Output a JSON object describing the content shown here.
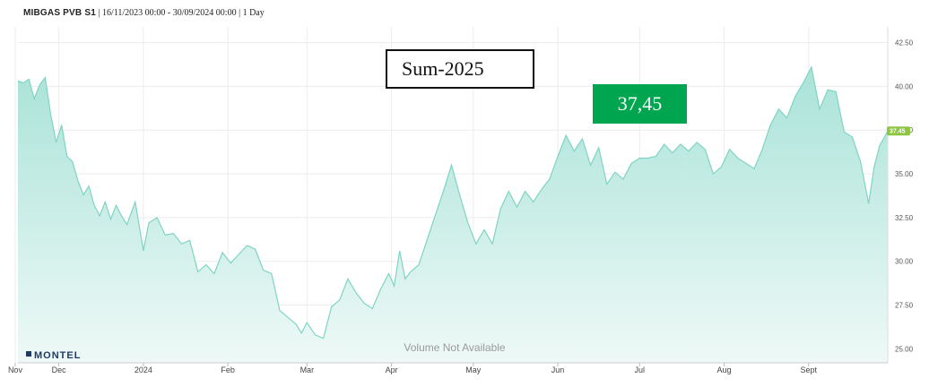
{
  "header": {
    "symbol": "MIBGAS PVB S1",
    "meta": " | 16/11/2023 00:00 - 30/09/2024 00:00 | 1 Day"
  },
  "overlays": {
    "product": "Sum-2025",
    "price": "37,45"
  },
  "watermark": "Volume Not Available",
  "brand": "MONTEL",
  "last_value_label": "37.45",
  "colors": {
    "line": "#7fd4c4",
    "fill_top": "#a9e3d8",
    "fill_bottom": "#eef9f7",
    "price_box": "#00a550",
    "last_label_bg": "#8dc63f",
    "grid": "#ececec"
  },
  "chart_data": {
    "type": "area",
    "title": "MIBGAS PVB S1",
    "xlabel": "",
    "ylabel": "",
    "grid": true,
    "y_axis_side": "right",
    "ylim": [
      24.2,
      43.4
    ],
    "xlim": [
      "2023-11-16",
      "2024-09-30"
    ],
    "y_ticks": [
      "25.00",
      "27.50",
      "30.00",
      "32.50",
      "35.00",
      "37.50",
      "40.00",
      "42.50"
    ],
    "x_ticks": [
      {
        "label": "Nov",
        "date": "2023-11-15"
      },
      {
        "label": "Dec",
        "date": "2023-12-01"
      },
      {
        "label": "2024",
        "date": "2024-01-01"
      },
      {
        "label": "Feb",
        "date": "2024-02-01"
      },
      {
        "label": "Mar",
        "date": "2024-03-01"
      },
      {
        "label": "Apr",
        "date": "2024-04-01"
      },
      {
        "label": "May",
        "date": "2024-05-01"
      },
      {
        "label": "Jun",
        "date": "2024-06-01"
      },
      {
        "label": "Jul",
        "date": "2024-07-01"
      },
      {
        "label": "Aug",
        "date": "2024-08-01"
      },
      {
        "label": "Sept",
        "date": "2024-09-01"
      }
    ],
    "series": [
      {
        "values": [
          [
            "2023-11-16",
            40.3
          ],
          [
            "2023-11-18",
            40.2
          ],
          [
            "2023-11-20",
            40.4
          ],
          [
            "2023-11-22",
            39.3
          ],
          [
            "2023-11-24",
            40.1
          ],
          [
            "2023-11-26",
            40.5
          ],
          [
            "2023-11-28",
            38.4
          ],
          [
            "2023-11-30",
            36.8
          ],
          [
            "2023-12-02",
            37.8
          ],
          [
            "2023-12-04",
            36.0
          ],
          [
            "2023-12-06",
            35.7
          ],
          [
            "2023-12-08",
            34.6
          ],
          [
            "2023-12-10",
            33.8
          ],
          [
            "2023-12-12",
            34.3
          ],
          [
            "2023-12-14",
            33.2
          ],
          [
            "2023-12-16",
            32.6
          ],
          [
            "2023-12-18",
            33.4
          ],
          [
            "2023-12-20",
            32.4
          ],
          [
            "2023-12-22",
            33.2
          ],
          [
            "2023-12-24",
            32.6
          ],
          [
            "2023-12-26",
            32.1
          ],
          [
            "2023-12-29",
            33.4
          ],
          [
            "2024-01-01",
            30.6
          ],
          [
            "2024-01-03",
            32.2
          ],
          [
            "2024-01-06",
            32.5
          ],
          [
            "2024-01-09",
            31.5
          ],
          [
            "2024-01-12",
            31.6
          ],
          [
            "2024-01-15",
            31.0
          ],
          [
            "2024-01-18",
            31.2
          ],
          [
            "2024-01-21",
            29.4
          ],
          [
            "2024-01-24",
            29.8
          ],
          [
            "2024-01-27",
            29.3
          ],
          [
            "2024-01-30",
            30.5
          ],
          [
            "2024-02-02",
            29.9
          ],
          [
            "2024-02-05",
            30.4
          ],
          [
            "2024-02-08",
            30.9
          ],
          [
            "2024-02-11",
            30.7
          ],
          [
            "2024-02-14",
            29.5
          ],
          [
            "2024-02-17",
            29.3
          ],
          [
            "2024-02-20",
            27.2
          ],
          [
            "2024-02-23",
            26.8
          ],
          [
            "2024-02-26",
            26.4
          ],
          [
            "2024-02-28",
            25.9
          ],
          [
            "2024-03-01",
            26.5
          ],
          [
            "2024-03-04",
            25.8
          ],
          [
            "2024-03-07",
            25.6
          ],
          [
            "2024-03-10",
            27.4
          ],
          [
            "2024-03-13",
            27.8
          ],
          [
            "2024-03-16",
            29.0
          ],
          [
            "2024-03-19",
            28.2
          ],
          [
            "2024-03-22",
            27.6
          ],
          [
            "2024-03-25",
            27.3
          ],
          [
            "2024-03-28",
            28.4
          ],
          [
            "2024-03-31",
            29.3
          ],
          [
            "2024-04-02",
            28.6
          ],
          [
            "2024-04-04",
            30.6
          ],
          [
            "2024-04-06",
            29.0
          ],
          [
            "2024-04-08",
            29.4
          ],
          [
            "2024-04-11",
            29.8
          ],
          [
            "2024-04-14",
            31.2
          ],
          [
            "2024-04-17",
            32.6
          ],
          [
            "2024-04-20",
            34.0
          ],
          [
            "2024-04-23",
            35.5
          ],
          [
            "2024-04-26",
            33.8
          ],
          [
            "2024-04-29",
            32.2
          ],
          [
            "2024-05-02",
            31.0
          ],
          [
            "2024-05-05",
            31.8
          ],
          [
            "2024-05-08",
            31.0
          ],
          [
            "2024-05-11",
            33.0
          ],
          [
            "2024-05-14",
            34.0
          ],
          [
            "2024-05-17",
            33.1
          ],
          [
            "2024-05-20",
            34.0
          ],
          [
            "2024-05-23",
            33.4
          ],
          [
            "2024-05-26",
            34.1
          ],
          [
            "2024-05-29",
            34.7
          ],
          [
            "2024-06-01",
            36.0
          ],
          [
            "2024-06-04",
            37.2
          ],
          [
            "2024-06-07",
            36.3
          ],
          [
            "2024-06-10",
            37.0
          ],
          [
            "2024-06-13",
            35.5
          ],
          [
            "2024-06-16",
            36.5
          ],
          [
            "2024-06-19",
            34.4
          ],
          [
            "2024-06-22",
            35.1
          ],
          [
            "2024-06-25",
            34.7
          ],
          [
            "2024-06-28",
            35.6
          ],
          [
            "2024-07-01",
            35.9
          ],
          [
            "2024-07-04",
            35.9
          ],
          [
            "2024-07-07",
            36.0
          ],
          [
            "2024-07-10",
            36.7
          ],
          [
            "2024-07-13",
            36.2
          ],
          [
            "2024-07-16",
            36.7
          ],
          [
            "2024-07-19",
            36.3
          ],
          [
            "2024-07-22",
            36.8
          ],
          [
            "2024-07-25",
            36.4
          ],
          [
            "2024-07-28",
            35.0
          ],
          [
            "2024-07-31",
            35.4
          ],
          [
            "2024-08-03",
            36.4
          ],
          [
            "2024-08-06",
            35.9
          ],
          [
            "2024-08-09",
            35.6
          ],
          [
            "2024-08-12",
            35.3
          ],
          [
            "2024-08-15",
            36.4
          ],
          [
            "2024-08-18",
            37.8
          ],
          [
            "2024-08-21",
            38.7
          ],
          [
            "2024-08-24",
            38.2
          ],
          [
            "2024-08-27",
            39.4
          ],
          [
            "2024-08-30",
            40.2
          ],
          [
            "2024-09-02",
            41.1
          ],
          [
            "2024-09-05",
            38.7
          ],
          [
            "2024-09-08",
            39.8
          ],
          [
            "2024-09-11",
            39.7
          ],
          [
            "2024-09-14",
            37.4
          ],
          [
            "2024-09-17",
            37.1
          ],
          [
            "2024-09-20",
            35.7
          ],
          [
            "2024-09-23",
            33.3
          ],
          [
            "2024-09-25",
            35.4
          ],
          [
            "2024-09-27",
            36.6
          ],
          [
            "2024-09-30",
            37.45
          ]
        ]
      }
    ]
  }
}
